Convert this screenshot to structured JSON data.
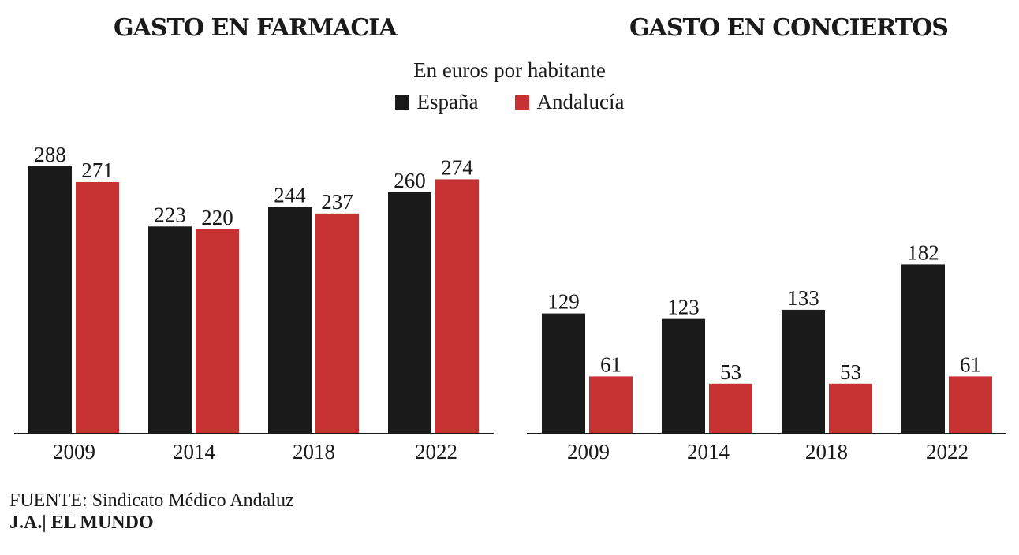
{
  "subtitle": "En euros por habitante",
  "legend": [
    {
      "label": "España",
      "color": "#1a1a1a"
    },
    {
      "label": "Andalucía",
      "color": "#c73232"
    }
  ],
  "source": "FUENTE: Sindicato Médico Andaluz",
  "credit": "J.A.| EL MUNDO",
  "chart_data": [
    {
      "type": "bar",
      "title": "GASTO EN FARMACIA",
      "categories": [
        "2009",
        "2014",
        "2018",
        "2022"
      ],
      "series": [
        {
          "name": "España",
          "color": "#1a1a1a",
          "values": [
            288,
            223,
            244,
            260
          ]
        },
        {
          "name": "Andalucía",
          "color": "#c73232",
          "values": [
            271,
            220,
            237,
            274
          ]
        }
      ],
      "grid": false
    },
    {
      "type": "bar",
      "title": "GASTO EN CONCIERTOS",
      "categories": [
        "2009",
        "2014",
        "2018",
        "2022"
      ],
      "series": [
        {
          "name": "España",
          "color": "#1a1a1a",
          "values": [
            129,
            123,
            133,
            182
          ]
        },
        {
          "name": "Andalucía",
          "color": "#c73232",
          "values": [
            61,
            53,
            53,
            61
          ]
        }
      ],
      "grid": false
    }
  ]
}
